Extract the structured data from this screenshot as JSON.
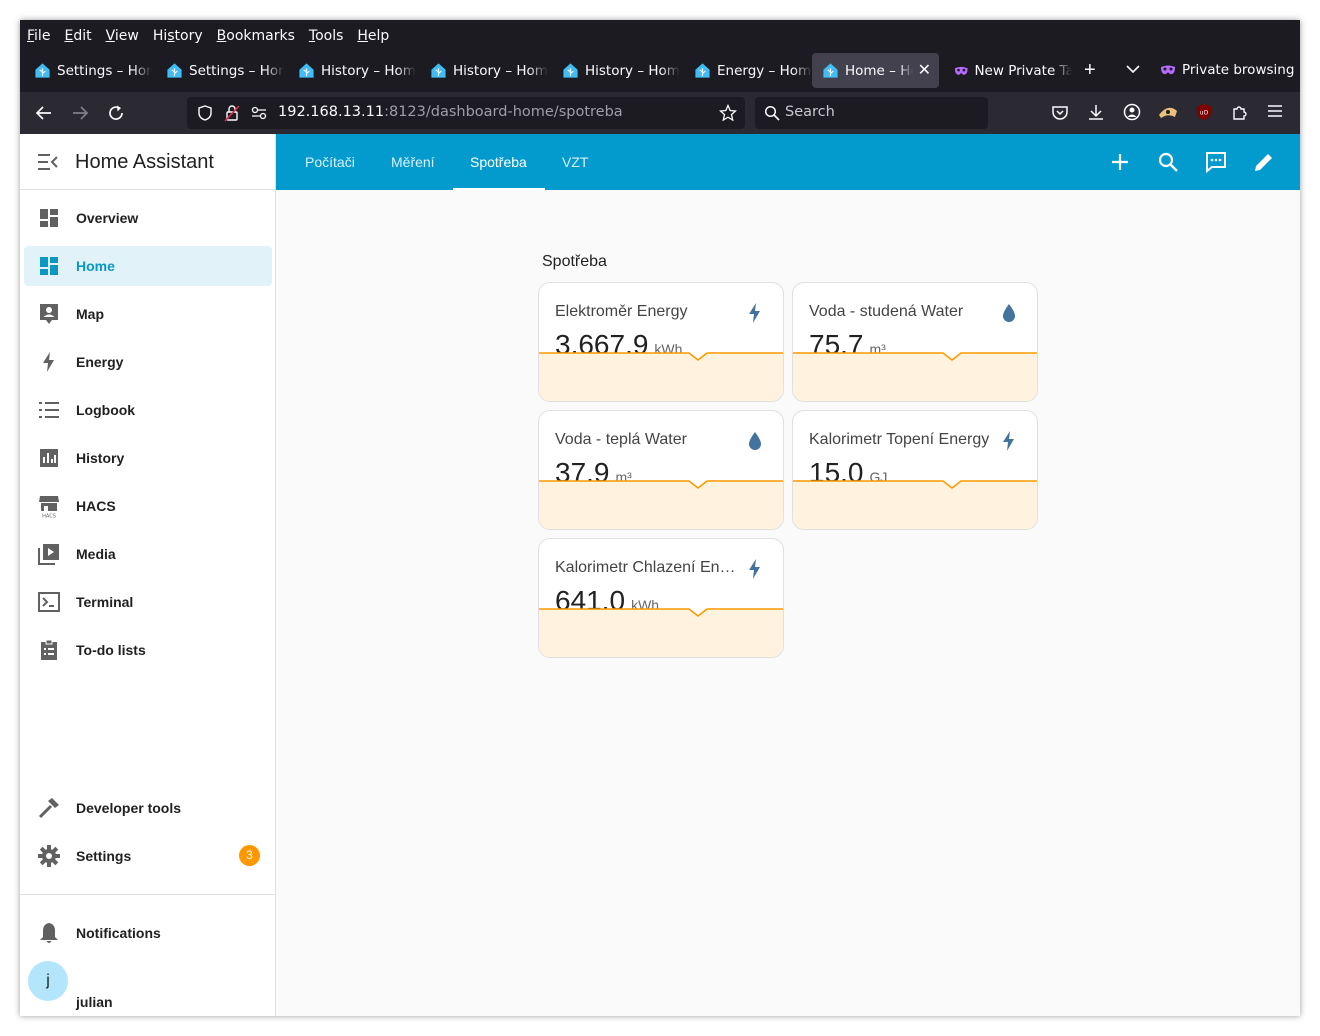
{
  "browser": {
    "menu": [
      "File",
      "Edit",
      "View",
      "History",
      "Bookmarks",
      "Tools",
      "Help"
    ],
    "menu_underline": [
      "F",
      "E",
      "V",
      "s",
      "B",
      "T",
      "H"
    ],
    "tabs": [
      {
        "title": "Settings – Home Assistant",
        "active": false
      },
      {
        "title": "Settings – Home Assistant",
        "active": false
      },
      {
        "title": "History – Home Assistant",
        "active": false
      },
      {
        "title": "History – Home Assistant",
        "active": false
      },
      {
        "title": "History – Home Assistant",
        "active": false
      },
      {
        "title": "Energy – Home Assistant",
        "active": false
      },
      {
        "title": "Home – Home Assistant",
        "active": true
      },
      {
        "title": "New Private Tab",
        "active": false
      }
    ],
    "private_label": "Private browsing",
    "url_host": "192.168.13.11",
    "url_rest": ":8123/dashboard-home/spotreba",
    "search_placeholder": "Search"
  },
  "sidebar": {
    "title": "Home Assistant",
    "items": [
      {
        "label": "Overview",
        "icon": "overview-icon",
        "selected": false
      },
      {
        "label": "Home",
        "icon": "home-dashboard-icon",
        "selected": true
      },
      {
        "label": "Map",
        "icon": "map-icon",
        "selected": false
      },
      {
        "label": "Energy",
        "icon": "lightning-icon",
        "selected": false
      },
      {
        "label": "Logbook",
        "icon": "logbook-icon",
        "selected": false
      },
      {
        "label": "History",
        "icon": "chart-icon",
        "selected": false
      },
      {
        "label": "HACS",
        "icon": "hacs-store-icon",
        "selected": false
      },
      {
        "label": "Media",
        "icon": "media-icon",
        "selected": false
      },
      {
        "label": "Terminal",
        "icon": "terminal-icon",
        "selected": false
      },
      {
        "label": "To-do lists",
        "icon": "clipboard-list-icon",
        "selected": false
      }
    ],
    "developer_tools": "Developer tools",
    "settings": "Settings",
    "settings_badge": "3",
    "notifications": "Notifications",
    "user_name": "julian",
    "user_initial": "j"
  },
  "header": {
    "tabs": [
      "Počítači",
      "Měření",
      "Spotřeba",
      "VZT"
    ],
    "active_tab": "Spotřeba"
  },
  "section": {
    "title": "Spotřeba",
    "cards": [
      {
        "name": "Elektroměr Energy",
        "value": "3,667.9",
        "unit": "kWh",
        "icon": "lightning-icon"
      },
      {
        "name": "Voda - studená Water",
        "value": "75.7",
        "unit": "m³",
        "icon": "water-drop-icon"
      },
      {
        "name": "Voda - teplá Water",
        "value": "37.9",
        "unit": "m³",
        "icon": "water-drop-icon"
      },
      {
        "name": "Kalorimetr Topení Energy",
        "value": "15.0",
        "unit": "GJ",
        "icon": "lightning-icon"
      },
      {
        "name": "Kalorimetr Chlazení Energy",
        "value": "641.0",
        "unit": "kWh",
        "icon": "lightning-icon"
      }
    ]
  },
  "colors": {
    "header_bg": "#039bcd",
    "selected_bg": "#e1f2f8",
    "accent": "#0b97c4",
    "badge": "#ff9800",
    "sparkline": "#ff9800",
    "sparkline_fill": "#fff3e0",
    "icon_blue": "#44739e"
  }
}
